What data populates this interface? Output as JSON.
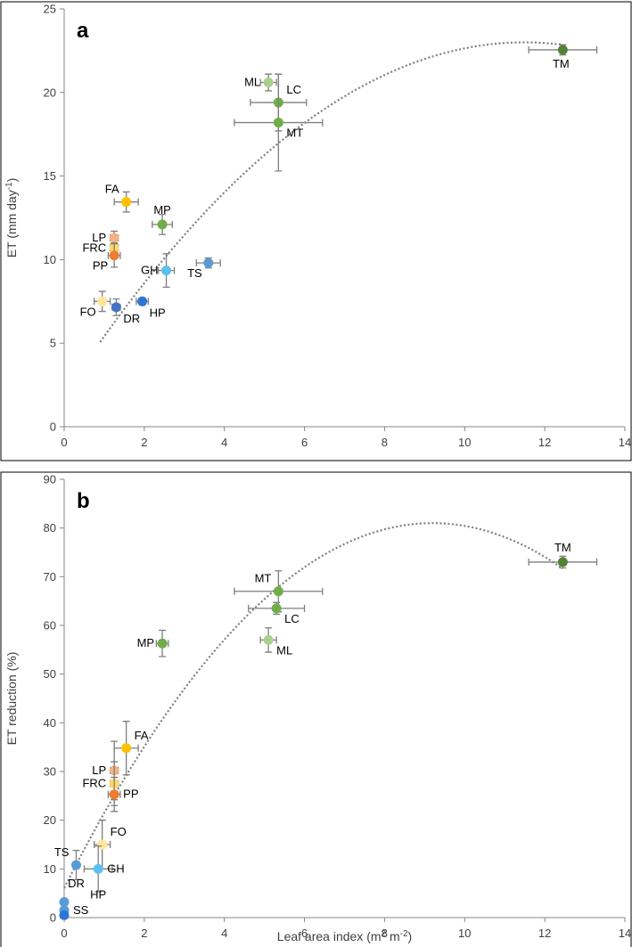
{
  "colors": {
    "LP": "#f4b183",
    "FRC": "#ffd966",
    "PP": "#ed7d31",
    "FA": "#ffc000",
    "FO": "#ffe699",
    "MP": "#70ad47",
    "ML": "#a9d18e",
    "LC": "#70ad47",
    "MT": "#70ad47",
    "TM": "#548235",
    "DR": "#4472c4",
    "HP": "#2e75d6",
    "GH": "#5bc0f0",
    "TS": "#5b9bd5",
    "SS": "#5b9bd5"
  },
  "chart_data": [
    {
      "panel": "a",
      "type": "scatter",
      "xlabel": "",
      "ylabel": {
        "text": "ET (mm day",
        "sup": "-1",
        "suffix": ")"
      },
      "xlim": [
        0,
        14
      ],
      "ylim": [
        0,
        25
      ],
      "xticks": [
        0,
        2,
        4,
        6,
        8,
        10,
        12,
        14
      ],
      "yticks": [
        0,
        5,
        10,
        15,
        20,
        25
      ],
      "trend_curve": {
        "x_start": 0.9,
        "x_end": 12.45,
        "vertex_x": 11.5,
        "vertex_y": 23.0,
        "a": -0.1596
      },
      "points": [
        {
          "label": "TM",
          "x": 12.45,
          "y": 22.55,
          "xerr": 0.85,
          "yerr": 0.3,
          "color_key": "TM",
          "label_pos": "below-left"
        },
        {
          "label": "ML",
          "x": 5.1,
          "y": 20.6,
          "xerr": 0.2,
          "yerr": 0.5,
          "color_key": "ML",
          "label_pos": "left"
        },
        {
          "label": "LC",
          "x": 5.35,
          "y": 19.4,
          "xerr": 0.7,
          "yerr": 1.7,
          "color_key": "LC",
          "label_pos": "upper-right"
        },
        {
          "label": "MT",
          "x": 5.35,
          "y": 18.2,
          "xerr": 1.1,
          "yerr": 2.9,
          "color_key": "MT",
          "label_pos": "lower-right"
        },
        {
          "label": "FA",
          "x": 1.55,
          "y": 13.45,
          "xerr": 0.3,
          "yerr": 0.6,
          "color_key": "FA",
          "label_pos": "upper-left"
        },
        {
          "label": "MP",
          "x": 2.45,
          "y": 12.1,
          "xerr": 0.25,
          "yerr": 0.6,
          "color_key": "MP",
          "label_pos": "above"
        },
        {
          "label": "LP",
          "x": 1.25,
          "y": 11.3,
          "xerr": 0.1,
          "yerr": 0.4,
          "color_key": "LP",
          "label_pos": "left"
        },
        {
          "label": "FRC",
          "x": 1.25,
          "y": 10.7,
          "xerr": 0.1,
          "yerr": 0.3,
          "color_key": "FRC",
          "label_pos": "left"
        },
        {
          "label": "PP",
          "x": 1.25,
          "y": 10.25,
          "xerr": 0.15,
          "yerr": 0.7,
          "color_key": "PP",
          "label_pos": "lower-left"
        },
        {
          "label": "GH",
          "x": 2.55,
          "y": 9.35,
          "xerr": 0.2,
          "yerr": 1.0,
          "color_key": "GH",
          "label_pos": "left"
        },
        {
          "label": "TS",
          "x": 3.6,
          "y": 9.8,
          "xerr": 0.3,
          "yerr": 0.3,
          "color_key": "TS",
          "label_pos": "lower-left"
        },
        {
          "label": "FO",
          "x": 0.95,
          "y": 7.5,
          "xerr": 0.2,
          "yerr": 0.6,
          "color_key": "FO",
          "label_pos": "lower-left"
        },
        {
          "label": "DR",
          "x": 1.3,
          "y": 7.15,
          "xerr": 0.1,
          "yerr": 0.5,
          "color_key": "DR",
          "label_pos": "below-right"
        },
        {
          "label": "HP",
          "x": 1.95,
          "y": 7.5,
          "xerr": 0.15,
          "yerr": 0.2,
          "color_key": "HP",
          "label_pos": "below-right"
        }
      ]
    },
    {
      "panel": "b",
      "type": "scatter",
      "xlabel": {
        "text": "Leaf area index (m",
        "sup1": "2",
        "mid": " m",
        "sup2": "-2",
        "suffix": ")"
      },
      "ylabel": {
        "text": "ET reduction (%)"
      },
      "xlim": [
        0,
        14
      ],
      "ylim": [
        0,
        90
      ],
      "xticks": [
        0,
        2,
        4,
        6,
        8,
        10,
        12,
        14
      ],
      "yticks": [
        0,
        10,
        20,
        30,
        40,
        50,
        60,
        70,
        80,
        90
      ],
      "trend_curve": {
        "x_start": 0,
        "x_end": 12.45,
        "vertex_x": 9.2,
        "vertex_y": 81.0,
        "a": -0.8851
      },
      "points": [
        {
          "label": "TM",
          "x": 12.45,
          "y": 73.0,
          "xerr": 0.85,
          "yerr": 1.2,
          "color_key": "TM",
          "label_pos": "above"
        },
        {
          "label": "MT",
          "x": 5.35,
          "y": 67.0,
          "xerr": 1.1,
          "yerr": 4.2,
          "color_key": "MT",
          "label_pos": "upper-left"
        },
        {
          "label": "LC",
          "x": 5.3,
          "y": 63.5,
          "xerr": 0.7,
          "yerr": 1.2,
          "color_key": "LC",
          "label_pos": "lower-right"
        },
        {
          "label": "ML",
          "x": 5.1,
          "y": 57.0,
          "xerr": 0.2,
          "yerr": 2.5,
          "color_key": "ML",
          "label_pos": "lower-right"
        },
        {
          "label": "MP",
          "x": 2.45,
          "y": 56.3,
          "xerr": 0.15,
          "yerr": 2.7,
          "color_key": "MP",
          "label_pos": "left"
        },
        {
          "label": "FA",
          "x": 1.55,
          "y": 34.8,
          "xerr": 0.3,
          "yerr": 5.5,
          "color_key": "FA",
          "label_pos": "upper-right"
        },
        {
          "label": "LP",
          "x": 1.25,
          "y": 30.2,
          "xerr": 0.1,
          "yerr": 6.0,
          "color_key": "LP",
          "label_pos": "left"
        },
        {
          "label": "FRC",
          "x": 1.25,
          "y": 27.5,
          "xerr": 0.1,
          "yerr": 4.5,
          "color_key": "FRC",
          "label_pos": "left"
        },
        {
          "label": "PP",
          "x": 1.25,
          "y": 25.3,
          "xerr": 0.15,
          "yerr": 3.5,
          "color_key": "PP",
          "label_pos": "right"
        },
        {
          "label": "FO",
          "x": 0.95,
          "y": 15.0,
          "xerr": 0.2,
          "yerr": 5.0,
          "color_key": "FO",
          "label_pos": "upper-right"
        },
        {
          "label": "TS",
          "x": 0.3,
          "y": 10.8,
          "xerr": 0.05,
          "yerr": 3.0,
          "color_key": "TS",
          "label_pos": "upper-left"
        },
        {
          "label": "GH",
          "x": 0.85,
          "y": 10.0,
          "xerr": 0.35,
          "yerr": 4.7,
          "color_key": "GH",
          "label_pos": "right"
        },
        {
          "label": "DR",
          "x": 0.0,
          "y": 3.2,
          "xerr": 0,
          "yerr": 0,
          "color_key": "SS",
          "label_pos": "none"
        },
        {
          "label": "SS",
          "x": 0.0,
          "y": 1.5,
          "xerr": 0,
          "yerr": 0,
          "color_key": "SS",
          "label_pos": "right"
        },
        {
          "label": "HP",
          "x": 0.0,
          "y": 0.5,
          "xerr": 0,
          "yerr": 0,
          "color_key": "HP",
          "label_pos": "none"
        }
      ],
      "extra_labels": [
        {
          "label": "DR",
          "x": 0.3,
          "y": 6.2
        },
        {
          "label": "HP",
          "x": 0.85,
          "y": 3.9
        }
      ]
    }
  ]
}
